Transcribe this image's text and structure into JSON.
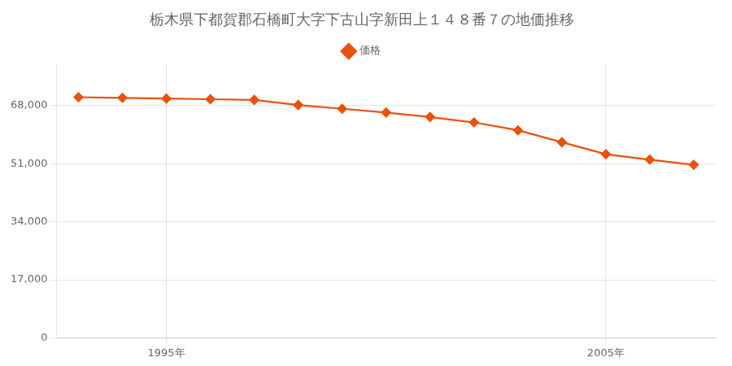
{
  "chart_data": {
    "type": "line",
    "title": "栃木県下都賀郡石橋町大字下古山字新田上１４８番７の地価推移",
    "x": [
      1993,
      1994,
      1995,
      1996,
      1997,
      1998,
      1999,
      2000,
      2001,
      2002,
      2003,
      2004,
      2005,
      2006,
      2007
    ],
    "series": [
      {
        "name": "価格",
        "color": "#E8520A",
        "marker": "diamond",
        "values": [
          70500,
          70300,
          70100,
          69900,
          69700,
          68200,
          67100,
          66000,
          64700,
          63100,
          60800,
          57300,
          53800,
          52200,
          50700
        ]
      }
    ],
    "xlim": [
      1992.5,
      2007.5
    ],
    "xticks": [
      {
        "value": 1995,
        "label": "1995年"
      },
      {
        "value": 2005,
        "label": "2005年"
      }
    ],
    "ylim": [
      0,
      80000
    ],
    "yticks": [
      0,
      {
        "value": 17000,
        "label": "17,000"
      },
      {
        "value": 34000,
        "label": "34,000"
      },
      {
        "value": 51000,
        "label": "51,000"
      },
      {
        "value": 68000,
        "label": "68,000"
      }
    ],
    "grid": true,
    "legend": "top"
  }
}
